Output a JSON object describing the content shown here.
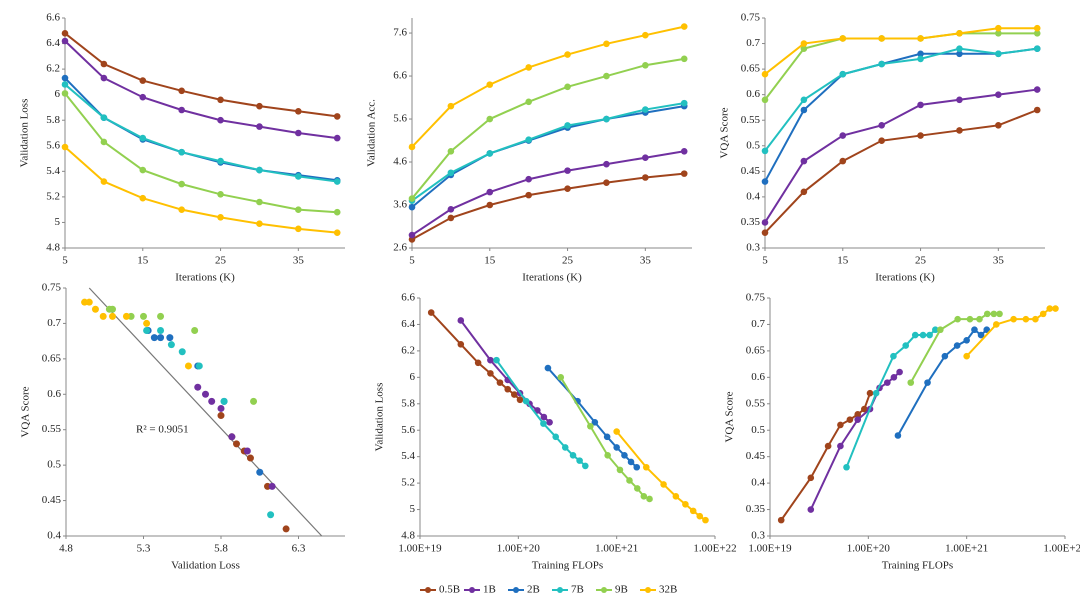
{
  "chart_data": [
    {
      "type": "line",
      "x_label": "Iterations (K)",
      "y_label": "Validation Loss",
      "x": [
        5,
        10,
        15,
        20,
        25,
        30,
        35,
        40
      ],
      "xlim": [
        5,
        41
      ],
      "xticks": [
        5,
        15,
        25,
        35
      ],
      "ylim": [
        4.8,
        6.6
      ],
      "yticks": [
        4.8,
        5,
        5.2,
        5.4,
        5.6,
        5.8,
        6,
        6.2,
        6.4,
        6.6
      ],
      "series": [
        {
          "name": "0.5B",
          "color": "#a0441c",
          "values": [
            6.48,
            6.24,
            6.11,
            6.03,
            5.96,
            5.91,
            5.87,
            5.83
          ]
        },
        {
          "name": "1B",
          "color": "#7030a0",
          "values": [
            6.42,
            6.13,
            5.98,
            5.88,
            5.8,
            5.75,
            5.7,
            5.66
          ]
        },
        {
          "name": "2B",
          "color": "#1f6fbf",
          "values": [
            6.13,
            5.82,
            5.65,
            5.55,
            5.47,
            5.41,
            5.37,
            5.33
          ]
        },
        {
          "name": "7B",
          "color": "#22c0c0",
          "values": [
            6.08,
            5.82,
            5.66,
            5.55,
            5.48,
            5.41,
            5.36,
            5.32
          ]
        },
        {
          "name": "9B",
          "color": "#92d050",
          "values": [
            6.01,
            5.63,
            5.41,
            5.3,
            5.22,
            5.16,
            5.1,
            5.08
          ]
        },
        {
          "name": "32B",
          "color": "#ffc000",
          "values": [
            5.59,
            5.32,
            5.19,
            5.1,
            5.04,
            4.99,
            4.95,
            4.92
          ]
        }
      ]
    },
    {
      "type": "line",
      "x_label": "Iterations (K)",
      "y_label": "Validation Acc.",
      "x": [
        5,
        10,
        15,
        20,
        25,
        30,
        35,
        40
      ],
      "xlim": [
        5,
        41
      ],
      "xticks": [
        5,
        15,
        25,
        35
      ],
      "ylim": [
        2.6,
        7.95
      ],
      "yticks": [
        2.6,
        3.6,
        4.6,
        5.6,
        6.6,
        7.6
      ],
      "series": [
        {
          "name": "0.5B",
          "color": "#a0441c",
          "values": [
            2.8,
            3.3,
            3.6,
            3.83,
            3.98,
            4.12,
            4.24,
            4.33
          ]
        },
        {
          "name": "1B",
          "color": "#7030a0",
          "values": [
            2.9,
            3.5,
            3.9,
            4.2,
            4.4,
            4.55,
            4.7,
            4.85
          ]
        },
        {
          "name": "2B",
          "color": "#1f6fbf",
          "values": [
            3.55,
            4.3,
            4.8,
            5.1,
            5.4,
            5.6,
            5.75,
            5.9
          ]
        },
        {
          "name": "7B",
          "color": "#22c0c0",
          "values": [
            3.7,
            4.35,
            4.8,
            5.12,
            5.45,
            5.6,
            5.82,
            5.97
          ]
        },
        {
          "name": "9B",
          "color": "#92d050",
          "values": [
            3.75,
            4.85,
            5.6,
            6.0,
            6.35,
            6.6,
            6.85,
            7.0
          ]
        },
        {
          "name": "32B",
          "color": "#ffc000",
          "values": [
            4.95,
            5.9,
            6.4,
            6.8,
            7.1,
            7.35,
            7.55,
            7.75
          ]
        }
      ]
    },
    {
      "type": "line",
      "x_label": "Iterations (K)",
      "y_label": "VQA Score",
      "x": [
        5,
        10,
        15,
        20,
        25,
        30,
        35,
        40
      ],
      "xlim": [
        5,
        41
      ],
      "xticks": [
        5,
        15,
        25,
        35
      ],
      "ylim": [
        0.3,
        0.75
      ],
      "yticks": [
        0.3,
        0.35,
        0.4,
        0.45,
        0.5,
        0.55,
        0.6,
        0.65,
        0.7,
        0.75
      ],
      "series": [
        {
          "name": "0.5B",
          "color": "#a0441c",
          "values": [
            0.33,
            0.41,
            0.47,
            0.51,
            0.52,
            0.53,
            0.54,
            0.57
          ]
        },
        {
          "name": "1B",
          "color": "#7030a0",
          "values": [
            0.35,
            0.47,
            0.52,
            0.54,
            0.58,
            0.59,
            0.6,
            0.61
          ]
        },
        {
          "name": "2B",
          "color": "#1f6fbf",
          "values": [
            0.43,
            0.57,
            0.64,
            0.66,
            0.68,
            0.68,
            0.68,
            0.69
          ]
        },
        {
          "name": "7B",
          "color": "#22c0c0",
          "values": [
            0.49,
            0.59,
            0.64,
            0.66,
            0.67,
            0.69,
            0.68,
            0.69
          ]
        },
        {
          "name": "9B",
          "color": "#92d050",
          "values": [
            0.59,
            0.69,
            0.71,
            0.71,
            0.71,
            0.72,
            0.72,
            0.72
          ]
        },
        {
          "name": "32B",
          "color": "#ffc000",
          "values": [
            0.64,
            0.7,
            0.71,
            0.71,
            0.71,
            0.72,
            0.73,
            0.73
          ]
        }
      ]
    },
    {
      "type": "scatter",
      "x_label": "Validation Loss",
      "y_label": "VQA Score",
      "annotation": "R² = 0.9051",
      "xlim": [
        4.8,
        6.6
      ],
      "xticks": [
        4.8,
        5.3,
        5.8,
        6.3
      ],
      "ylim": [
        0.4,
        0.75
      ],
      "yticks": [
        0.4,
        0.45,
        0.5,
        0.55,
        0.6,
        0.65,
        0.7,
        0.75
      ],
      "trendline": {
        "color": "#777777",
        "x": [
          4.95,
          6.45
        ],
        "y": [
          0.75,
          0.4
        ]
      },
      "series": [
        {
          "name": "0.5B",
          "color": "#a0441c",
          "x": [
            6.22,
            6.1,
            5.99,
            5.95,
            5.9,
            5.87,
            5.8
          ],
          "values": [
            0.41,
            0.47,
            0.51,
            0.52,
            0.53,
            0.54,
            0.57
          ]
        },
        {
          "name": "1B",
          "color": "#7030a0",
          "x": [
            6.13,
            5.97,
            5.87,
            5.8,
            5.74,
            5.7,
            5.65
          ],
          "values": [
            0.47,
            0.52,
            0.54,
            0.58,
            0.59,
            0.6,
            0.61
          ]
        },
        {
          "name": "2B",
          "color": "#1f6fbf",
          "x": [
            6.05,
            5.82,
            5.65,
            5.47,
            5.41,
            5.37,
            5.33
          ],
          "values": [
            0.49,
            0.59,
            0.64,
            0.68,
            0.68,
            0.68,
            0.69
          ]
        },
        {
          "name": "7B",
          "color": "#22c0c0",
          "x": [
            6.12,
            5.82,
            5.66,
            5.55,
            5.48,
            5.41,
            5.32
          ],
          "values": [
            0.43,
            0.59,
            0.64,
            0.66,
            0.67,
            0.69,
            0.69
          ]
        },
        {
          "name": "9B",
          "color": "#92d050",
          "x": [
            6.01,
            5.63,
            5.41,
            5.3,
            5.22,
            5.1,
            5.08
          ],
          "values": [
            0.59,
            0.69,
            0.71,
            0.71,
            0.71,
            0.72,
            0.72
          ]
        },
        {
          "name": "32B",
          "color": "#ffc000",
          "x": [
            5.59,
            5.32,
            5.19,
            5.1,
            5.04,
            4.99,
            4.95,
            4.92
          ],
          "values": [
            0.64,
            0.7,
            0.71,
            0.71,
            0.71,
            0.72,
            0.73,
            0.73
          ]
        }
      ]
    },
    {
      "type": "line",
      "x_label": "Training FLOPs",
      "y_label": "Validation Loss",
      "xscale": "log",
      "xlim": [
        1e+19,
        1e+22
      ],
      "xticks": [
        {
          "value": 1e+19,
          "label": "1.00E+19"
        },
        {
          "value": 1e+20,
          "label": "1.00E+20"
        },
        {
          "value": 1e+21,
          "label": "1.00E+21"
        },
        {
          "value": 1e+22,
          "label": "1.00E+22"
        }
      ],
      "ylim": [
        4.8,
        6.6
      ],
      "yticks": [
        4.8,
        5,
        5.2,
        5.4,
        5.6,
        5.8,
        6,
        6.2,
        6.4,
        6.6
      ],
      "series": [
        {
          "name": "0.5B",
          "color": "#a0441c",
          "x": [
            1.3e+19,
            2.6e+19,
            3.9e+19,
            5.2e+19,
            6.5e+19,
            7.8e+19,
            9.1e+19,
            1.04e+20
          ],
          "values": [
            6.49,
            6.25,
            6.11,
            6.03,
            5.96,
            5.91,
            5.87,
            5.83
          ]
        },
        {
          "name": "1B",
          "color": "#7030a0",
          "x": [
            2.6e+19,
            5.2e+19,
            7.8e+19,
            1.04e+20,
            1.3e+20,
            1.56e+20,
            1.82e+20,
            2.08e+20
          ],
          "values": [
            6.43,
            6.13,
            5.98,
            5.88,
            5.8,
            5.75,
            5.7,
            5.66
          ]
        },
        {
          "name": "2B",
          "color": "#1f6fbf",
          "x": [
            2e+20,
            4e+20,
            6e+20,
            8e+20,
            1e+21,
            1.2e+21,
            1.4e+21,
            1.6e+21
          ],
          "values": [
            6.07,
            5.82,
            5.66,
            5.55,
            5.47,
            5.41,
            5.36,
            5.32
          ]
        },
        {
          "name": "7B",
          "color": "#22c0c0",
          "x": [
            6e+19,
            1.2e+20,
            1.8e+20,
            2.4e+20,
            3e+20,
            3.6e+20,
            4.2e+20,
            4.8e+20
          ],
          "values": [
            6.13,
            5.82,
            5.65,
            5.55,
            5.47,
            5.41,
            5.37,
            5.33
          ]
        },
        {
          "name": "9B",
          "color": "#92d050",
          "x": [
            2.7e+20,
            5.4e+20,
            8.1e+20,
            1.08e+21,
            1.35e+21,
            1.62e+21,
            1.89e+21,
            2.16e+21
          ],
          "values": [
            6.0,
            5.63,
            5.41,
            5.3,
            5.22,
            5.16,
            5.1,
            5.08
          ]
        },
        {
          "name": "32B",
          "color": "#ffc000",
          "x": [
            1e+21,
            2e+21,
            3e+21,
            4e+21,
            5e+21,
            6e+21,
            7e+21,
            8e+21
          ],
          "values": [
            5.59,
            5.32,
            5.19,
            5.1,
            5.04,
            4.99,
            4.95,
            4.92
          ]
        }
      ]
    },
    {
      "type": "line",
      "x_label": "Training FLOPs",
      "y_label": "VQA Score",
      "xscale": "log",
      "xlim": [
        1e+19,
        1e+22
      ],
      "xticks": [
        {
          "value": 1e+19,
          "label": "1.00E+19"
        },
        {
          "value": 1e+20,
          "label": "1.00E+20"
        },
        {
          "value": 1e+21,
          "label": "1.00E+21"
        },
        {
          "value": 1e+22,
          "label": "1.00E+22"
        }
      ],
      "ylim": [
        0.3,
        0.75
      ],
      "yticks": [
        0.3,
        0.35,
        0.4,
        0.45,
        0.5,
        0.55,
        0.6,
        0.65,
        0.7,
        0.75
      ],
      "series": [
        {
          "name": "0.5B",
          "color": "#a0441c",
          "x": [
            1.3e+19,
            2.6e+19,
            3.9e+19,
            5.2e+19,
            6.5e+19,
            7.8e+19,
            9.1e+19,
            1.04e+20
          ],
          "values": [
            0.33,
            0.41,
            0.47,
            0.51,
            0.52,
            0.53,
            0.54,
            0.57
          ]
        },
        {
          "name": "1B",
          "color": "#7030a0",
          "x": [
            2.6e+19,
            5.2e+19,
            7.8e+19,
            1.04e+20,
            1.3e+20,
            1.56e+20,
            1.82e+20,
            2.08e+20
          ],
          "values": [
            0.35,
            0.47,
            0.52,
            0.54,
            0.58,
            0.59,
            0.6,
            0.61
          ]
        },
        {
          "name": "2B",
          "color": "#1f6fbf",
          "x": [
            2e+20,
            4e+20,
            6e+20,
            8e+20,
            1e+21,
            1.2e+21,
            1.4e+21,
            1.6e+21
          ],
          "values": [
            0.49,
            0.59,
            0.64,
            0.66,
            0.67,
            0.69,
            0.68,
            0.69
          ]
        },
        {
          "name": "7B",
          "color": "#22c0c0",
          "x": [
            6e+19,
            1.2e+20,
            1.8e+20,
            2.4e+20,
            3e+20,
            3.6e+20,
            4.2e+20,
            4.8e+20
          ],
          "values": [
            0.43,
            0.57,
            0.64,
            0.66,
            0.68,
            0.68,
            0.68,
            0.69
          ]
        },
        {
          "name": "9B",
          "color": "#92d050",
          "x": [
            2.7e+20,
            5.4e+20,
            8.1e+20,
            1.08e+21,
            1.35e+21,
            1.62e+21,
            1.89e+21,
            2.16e+21
          ],
          "values": [
            0.59,
            0.69,
            0.71,
            0.71,
            0.71,
            0.72,
            0.72,
            0.72
          ]
        },
        {
          "name": "32B",
          "color": "#ffc000",
          "x": [
            1e+21,
            2e+21,
            3e+21,
            4e+21,
            5e+21,
            6e+21,
            7e+21,
            8e+21
          ],
          "values": [
            0.64,
            0.7,
            0.71,
            0.71,
            0.71,
            0.72,
            0.73,
            0.73
          ]
        }
      ]
    }
  ]
}
